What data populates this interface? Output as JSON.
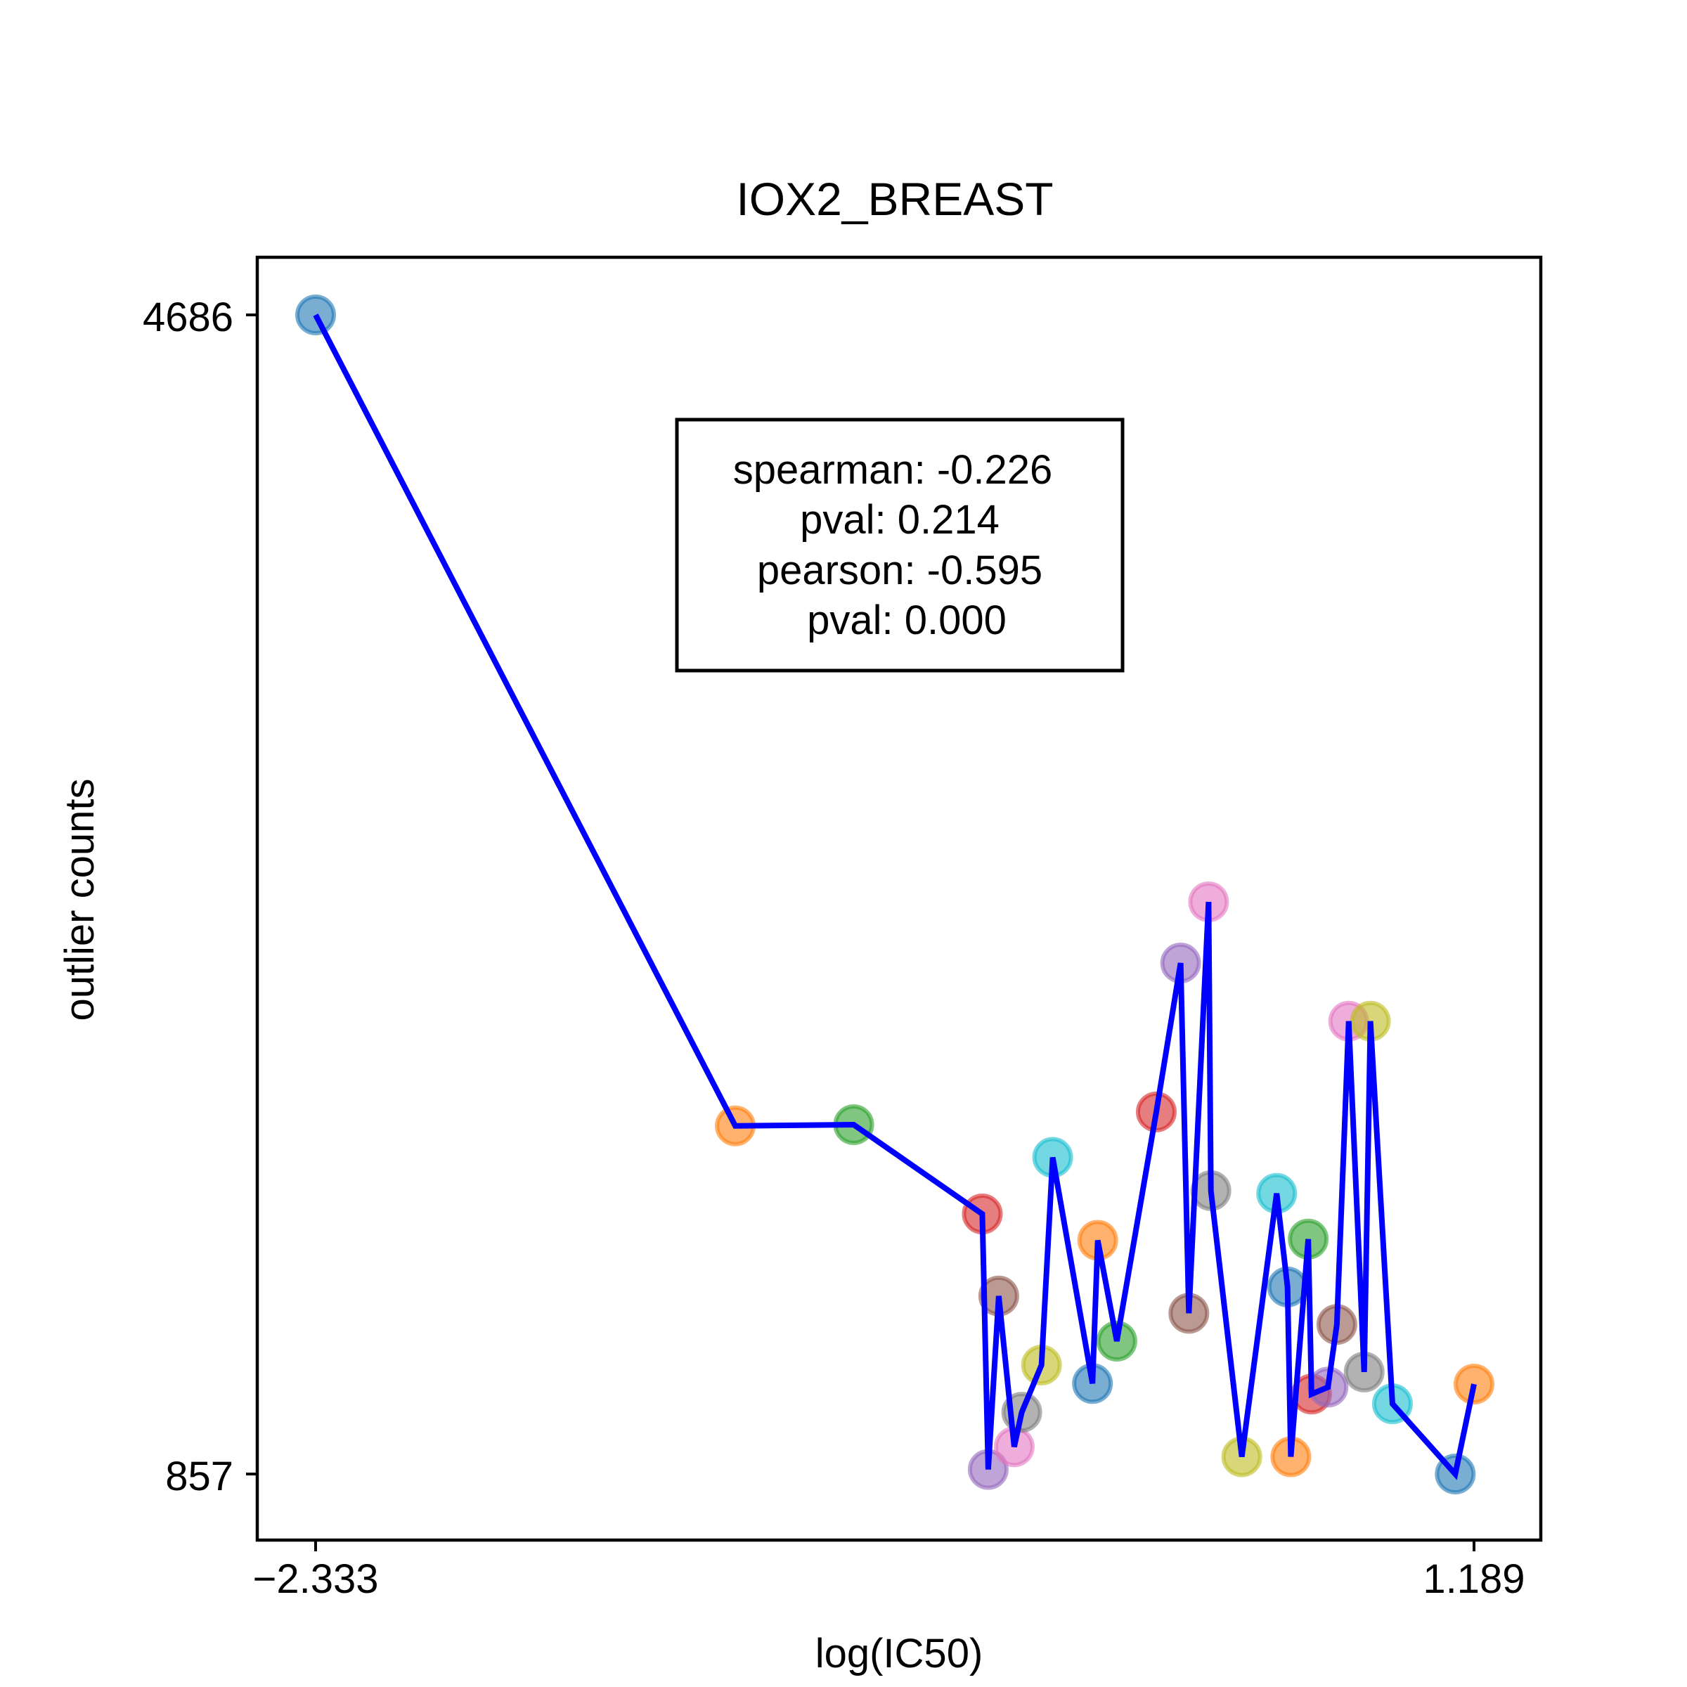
{
  "chart_data": {
    "type": "scatter",
    "title": "IOX2_BREAST",
    "xlabel": "log(IC50)",
    "ylabel": "outlier counts",
    "x_ticks": [
      "−2.333",
      "1.189"
    ],
    "y_ticks": [
      "4686",
      "857"
    ],
    "xlim": [
      -2.333,
      1.189
    ],
    "ylim": [
      857,
      4686
    ],
    "grid": false,
    "line_color": "#0000ff",
    "stats_box": {
      "spearman": "spearman: -0.226",
      "spearman_pval": "pval: 0.214",
      "pearson": "pearson: -0.595",
      "pearson_pval": "pval: 0.000"
    },
    "points": [
      {
        "x": -2.333,
        "y": 4686,
        "color": "#1f77b4"
      },
      {
        "x": -1.057,
        "y": 2007,
        "color": "#ff7f0e"
      },
      {
        "x": -0.697,
        "y": 2011,
        "color": "#2ca02c"
      },
      {
        "x": -0.306,
        "y": 1716,
        "color": "#d62728"
      },
      {
        "x": -0.288,
        "y": 872,
        "color": "#9467bd"
      },
      {
        "x": -0.256,
        "y": 1445,
        "color": "#8c564b"
      },
      {
        "x": -0.209,
        "y": 947,
        "color": "#e377c2"
      },
      {
        "x": -0.186,
        "y": 1061,
        "color": "#7f7f7f"
      },
      {
        "x": -0.126,
        "y": 1217,
        "color": "#bcbd22"
      },
      {
        "x": -0.092,
        "y": 1903,
        "color": "#17becf"
      },
      {
        "x": 0.029,
        "y": 1156,
        "color": "#1f77b4"
      },
      {
        "x": 0.045,
        "y": 1629,
        "color": "#ff7f0e"
      },
      {
        "x": 0.103,
        "y": 1296,
        "color": "#2ca02c"
      },
      {
        "x": 0.223,
        "y": 2053,
        "color": "#d62728"
      },
      {
        "x": 0.297,
        "y": 2545,
        "color": "#9467bd"
      },
      {
        "x": 0.322,
        "y": 1388,
        "color": "#8c564b"
      },
      {
        "x": 0.382,
        "y": 2747,
        "color": "#e377c2"
      },
      {
        "x": 0.389,
        "y": 1793,
        "color": "#7f7f7f"
      },
      {
        "x": 0.483,
        "y": 914,
        "color": "#bcbd22"
      },
      {
        "x": 0.589,
        "y": 1784,
        "color": "#17becf"
      },
      {
        "x": 0.622,
        "y": 1475,
        "color": "#1f77b4"
      },
      {
        "x": 0.632,
        "y": 914,
        "color": "#ff7f0e"
      },
      {
        "x": 0.685,
        "y": 1633,
        "color": "#2ca02c"
      },
      {
        "x": 0.695,
        "y": 1121,
        "color": "#d62728"
      },
      {
        "x": 0.745,
        "y": 1144,
        "color": "#9467bd"
      },
      {
        "x": 0.772,
        "y": 1351,
        "color": "#8c564b"
      },
      {
        "x": 0.808,
        "y": 2353,
        "color": "#e377c2"
      },
      {
        "x": 0.855,
        "y": 1194,
        "color": "#7f7f7f"
      },
      {
        "x": 0.874,
        "y": 2353,
        "color": "#bcbd22"
      },
      {
        "x": 0.941,
        "y": 1089,
        "color": "#17becf"
      },
      {
        "x": 1.132,
        "y": 857,
        "color": "#1f77b4"
      },
      {
        "x": 1.189,
        "y": 1154,
        "color": "#ff7f0e"
      }
    ]
  }
}
